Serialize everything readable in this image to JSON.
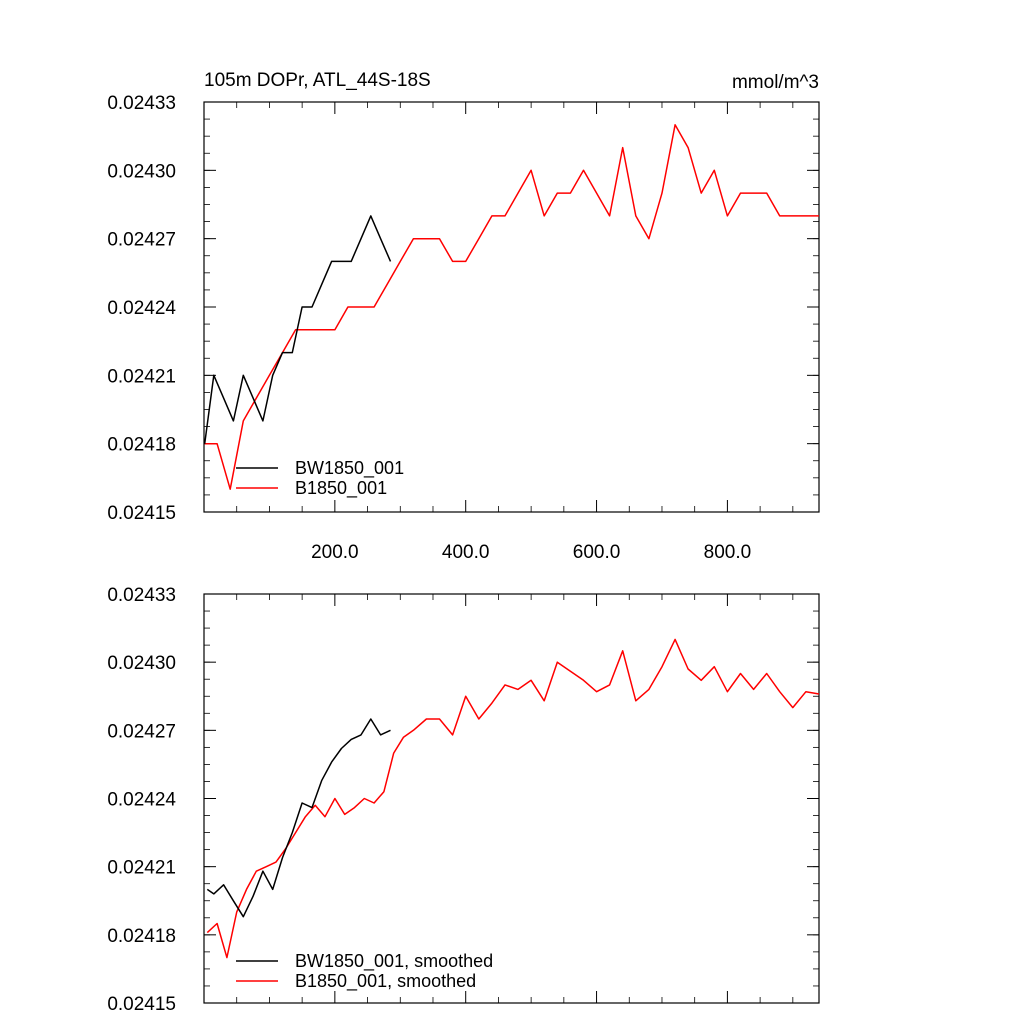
{
  "figure": {
    "title": "105m DOPr, ATL_44S-18S",
    "units": "mmol/m^3"
  },
  "chart_data": [
    {
      "type": "line",
      "xlim": [
        0,
        940
      ],
      "ylim": [
        0.02415,
        0.02433
      ],
      "yticks": [
        "0.02415",
        "0.02418",
        "0.02421",
        "0.02424",
        "0.02427",
        "0.02430",
        "0.02433"
      ],
      "ytick_values": [
        0.02415,
        0.02418,
        0.02421,
        0.02424,
        0.02427,
        0.0243,
        0.02433
      ],
      "xticks": [
        "200.0",
        "400.0",
        "600.0",
        "800.0"
      ],
      "xtick_values": [
        200,
        400,
        600,
        800
      ],
      "legend": "bottom-left",
      "series": [
        {
          "name": "BW1850_001",
          "color": "#000000",
          "x": [
            1,
            15,
            30,
            45,
            60,
            75,
            90,
            105,
            120,
            135,
            150,
            165,
            180,
            195,
            210,
            225,
            240,
            255,
            270,
            285
          ],
          "y": [
            0.02418,
            0.02421,
            0.0242,
            0.02419,
            0.02421,
            0.0242,
            0.02419,
            0.02421,
            0.02422,
            0.02422,
            0.02424,
            0.02424,
            0.02425,
            0.02426,
            0.02426,
            0.02426,
            0.02427,
            0.02428,
            0.02427,
            0.02426
          ]
        },
        {
          "name": "B1850_001",
          "color": "#ff0000",
          "x": [
            1,
            20,
            40,
            60,
            80,
            100,
            120,
            140,
            160,
            180,
            200,
            220,
            240,
            260,
            280,
            300,
            320,
            340,
            360,
            380,
            400,
            420,
            440,
            460,
            480,
            500,
            520,
            540,
            560,
            580,
            600,
            620,
            640,
            660,
            680,
            700,
            720,
            740,
            760,
            780,
            800,
            820,
            840,
            860,
            880,
            900,
            920,
            940
          ],
          "y": [
            0.02418,
            0.02418,
            0.02416,
            0.02419,
            0.0242,
            0.02421,
            0.02422,
            0.02423,
            0.02423,
            0.02423,
            0.02423,
            0.02424,
            0.02424,
            0.02424,
            0.02425,
            0.02426,
            0.02427,
            0.02427,
            0.02427,
            0.02426,
            0.02426,
            0.02427,
            0.02428,
            0.02428,
            0.02429,
            0.0243,
            0.02428,
            0.02429,
            0.02429,
            0.0243,
            0.02429,
            0.02428,
            0.02431,
            0.02428,
            0.02427,
            0.02429,
            0.02432,
            0.02431,
            0.02429,
            0.0243,
            0.02428,
            0.02429,
            0.02429,
            0.02429,
            0.02428,
            0.02428,
            0.02428,
            0.02428
          ]
        }
      ]
    },
    {
      "type": "line",
      "xlim": [
        0,
        940
      ],
      "ylim": [
        0.02415,
        0.02433
      ],
      "yticks": [
        "0.02415",
        "0.02418",
        "0.02421",
        "0.02424",
        "0.02427",
        "0.02430",
        "0.02433"
      ],
      "ytick_values": [
        0.02415,
        0.02418,
        0.02421,
        0.02424,
        0.02427,
        0.0243,
        0.02433
      ],
      "xticks": [],
      "xtick_values": [
        200,
        400,
        600,
        800
      ],
      "legend": "bottom-left",
      "series": [
        {
          "name": "BW1850_001, smoothed",
          "color": "#000000",
          "x": [
            5,
            15,
            30,
            45,
            60,
            75,
            90,
            105,
            120,
            135,
            150,
            165,
            180,
            195,
            210,
            225,
            240,
            255,
            270,
            285
          ],
          "y": [
            0.0242,
            0.024198,
            0.024202,
            0.024195,
            0.024188,
            0.024197,
            0.024208,
            0.0242,
            0.024214,
            0.024225,
            0.024238,
            0.024236,
            0.024248,
            0.024256,
            0.024262,
            0.024266,
            0.024268,
            0.024275,
            0.024268,
            0.02427
          ]
        },
        {
          "name": "B1850_001, smoothed",
          "color": "#ff0000",
          "x": [
            5,
            20,
            35,
            50,
            65,
            80,
            95,
            110,
            125,
            140,
            155,
            170,
            185,
            200,
            215,
            230,
            245,
            260,
            275,
            290,
            305,
            320,
            340,
            360,
            380,
            400,
            420,
            440,
            460,
            480,
            500,
            520,
            540,
            560,
            580,
            600,
            620,
            640,
            660,
            680,
            700,
            720,
            740,
            760,
            780,
            800,
            820,
            840,
            860,
            880,
            900,
            920,
            940
          ],
          "y": [
            0.024181,
            0.024185,
            0.02417,
            0.02419,
            0.0242,
            0.024208,
            0.02421,
            0.024212,
            0.024218,
            0.024225,
            0.024232,
            0.024237,
            0.024232,
            0.02424,
            0.024233,
            0.024236,
            0.02424,
            0.024238,
            0.024243,
            0.02426,
            0.024267,
            0.02427,
            0.024275,
            0.024275,
            0.024268,
            0.024285,
            0.024275,
            0.024282,
            0.02429,
            0.024288,
            0.024292,
            0.024283,
            0.0243,
            0.024296,
            0.024292,
            0.024287,
            0.02429,
            0.024305,
            0.024283,
            0.024288,
            0.024298,
            0.02431,
            0.024297,
            0.024292,
            0.024298,
            0.024287,
            0.024295,
            0.024288,
            0.024295,
            0.024287,
            0.02428,
            0.024287,
            0.024286
          ]
        }
      ]
    }
  ]
}
